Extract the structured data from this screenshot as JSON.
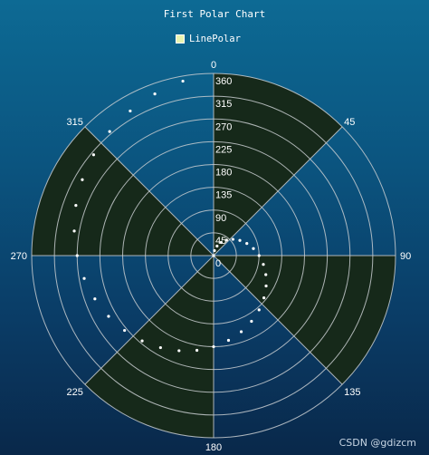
{
  "title": "First Polar Chart",
  "watermark": "CSDN @gdizcm",
  "colors": {
    "sector_fill": "#16291a",
    "grid": "#c8ccd0",
    "points": "#ffffff",
    "legend_swatch": "#e8f4b0"
  },
  "chart_data": {
    "type": "scatter",
    "coordinate_system": "polar",
    "title": "First Polar Chart",
    "legend": {
      "entries": [
        "LinePolar"
      ],
      "placement": "top-center"
    },
    "angle_axis": {
      "range": [
        0,
        360
      ],
      "direction": "clockwise",
      "start": "top",
      "tick_labels": [
        "0",
        "45",
        "90",
        "135",
        "180",
        "225",
        "270",
        "315"
      ],
      "shaded_sectors": [
        [
          0,
          45
        ],
        [
          90,
          135
        ],
        [
          180,
          225
        ],
        [
          270,
          315
        ]
      ]
    },
    "radius_axis": {
      "range": [
        0,
        360
      ],
      "tick_labels": [
        "0",
        "45",
        "90",
        "135",
        "180",
        "225",
        "270",
        "315",
        "360"
      ],
      "grid": true
    },
    "series": [
      {
        "name": "LinePolar",
        "points": [
          {
            "angle": 0,
            "r": 0
          },
          {
            "angle": 10,
            "r": 10
          },
          {
            "angle": 20,
            "r": 20
          },
          {
            "angle": 30,
            "r": 30
          },
          {
            "angle": 40,
            "r": 40
          },
          {
            "angle": 50,
            "r": 50
          },
          {
            "angle": 60,
            "r": 60
          },
          {
            "angle": 70,
            "r": 70
          },
          {
            "angle": 80,
            "r": 80
          },
          {
            "angle": 90,
            "r": 90
          },
          {
            "angle": 100,
            "r": 100
          },
          {
            "angle": 110,
            "r": 110
          },
          {
            "angle": 120,
            "r": 120
          },
          {
            "angle": 130,
            "r": 130
          },
          {
            "angle": 140,
            "r": 140
          },
          {
            "angle": 150,
            "r": 150
          },
          {
            "angle": 160,
            "r": 160
          },
          {
            "angle": 170,
            "r": 170
          },
          {
            "angle": 180,
            "r": 180
          },
          {
            "angle": 190,
            "r": 190
          },
          {
            "angle": 200,
            "r": 200
          },
          {
            "angle": 210,
            "r": 210
          },
          {
            "angle": 220,
            "r": 220
          },
          {
            "angle": 230,
            "r": 230
          },
          {
            "angle": 240,
            "r": 240
          },
          {
            "angle": 250,
            "r": 250
          },
          {
            "angle": 260,
            "r": 260
          },
          {
            "angle": 270,
            "r": 270
          },
          {
            "angle": 280,
            "r": 280
          },
          {
            "angle": 290,
            "r": 290
          },
          {
            "angle": 300,
            "r": 300
          },
          {
            "angle": 310,
            "r": 310
          },
          {
            "angle": 320,
            "r": 320
          },
          {
            "angle": 330,
            "r": 330
          },
          {
            "angle": 340,
            "r": 340
          },
          {
            "angle": 350,
            "r": 350
          }
        ]
      }
    ]
  }
}
